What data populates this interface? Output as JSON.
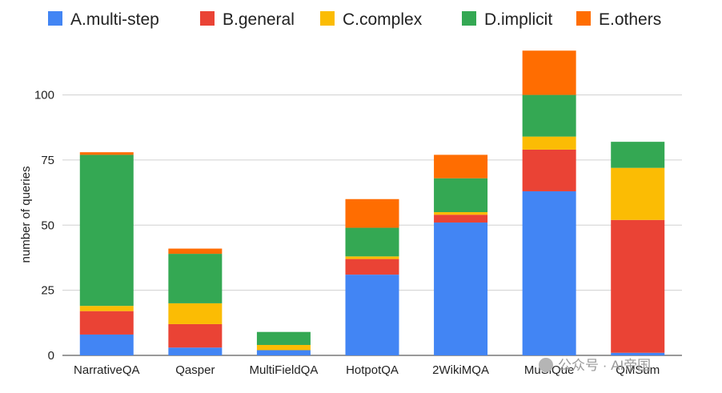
{
  "chart_data": {
    "type": "bar",
    "stacked": true,
    "title": "",
    "xlabel": "",
    "ylabel": "number of queries",
    "ylim": [
      0,
      118
    ],
    "yticks": [
      0,
      25,
      50,
      75,
      100
    ],
    "grid": true,
    "legend_position": "top",
    "categories": [
      "NarrativeQA",
      "Qasper",
      "MultiFieldQA",
      "HotpotQA",
      "2WikiMQA",
      "MuSiQue",
      "QMSum"
    ],
    "series": [
      {
        "name": "A.multi-step",
        "color": "#4285F4",
        "values": [
          8,
          3,
          2,
          31,
          51,
          63,
          1
        ]
      },
      {
        "name": "B.general",
        "color": "#EA4335",
        "values": [
          9,
          9,
          0,
          6,
          3,
          16,
          51
        ]
      },
      {
        "name": "C.complex",
        "color": "#FBBC04",
        "values": [
          2,
          8,
          2,
          1,
          1,
          5,
          20
        ]
      },
      {
        "name": "D.implicit",
        "color": "#34A853",
        "values": [
          58,
          19,
          5,
          11,
          13,
          16,
          10
        ]
      },
      {
        "name": "E.others",
        "color": "#FF6D01",
        "values": [
          1,
          2,
          0,
          11,
          9,
          17,
          0
        ]
      }
    ]
  },
  "watermark": "公众号 · AI帝国"
}
